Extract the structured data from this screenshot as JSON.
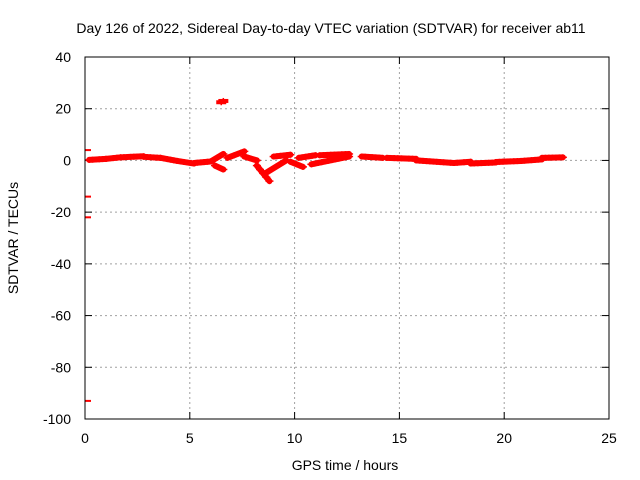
{
  "chart_data": {
    "type": "scatter",
    "title": "Day 126 of 2022, Sidereal Day-to-day VTEC variation (SDTVAR) for receiver ab11",
    "xlabel": "GPS time / hours",
    "ylabel": "SDTVAR / TECUs",
    "xlim": [
      0,
      25
    ],
    "ylim": [
      -100,
      40
    ],
    "x_ticks": [
      0,
      5,
      10,
      15,
      20,
      25
    ],
    "y_ticks": [
      40,
      20,
      0,
      -20,
      -40,
      -60,
      -80,
      -100
    ],
    "grid": true,
    "legend": "none",
    "series_color": "#ff0000",
    "outliers": [
      {
        "x": 0.0,
        "y": 4
      },
      {
        "x": 0.0,
        "y": -14
      },
      {
        "x": 0.0,
        "y": -22
      },
      {
        "x": 0.0,
        "y": -93
      },
      {
        "x": 6.5,
        "y": 22.5
      },
      {
        "x": 6.6,
        "y": 23
      }
    ],
    "segments": [
      {
        "x_start": 0.2,
        "x_end": 1.0,
        "y_start": 0.2,
        "y_end": 0.6
      },
      {
        "x_start": 1.0,
        "x_end": 1.7,
        "y_start": 0.6,
        "y_end": 1.2
      },
      {
        "x_start": 1.7,
        "x_end": 2.8,
        "y_start": 1.2,
        "y_end": 1.6
      },
      {
        "x_start": 2.8,
        "x_end": 3.6,
        "y_start": 1.4,
        "y_end": 1.0
      },
      {
        "x_start": 3.6,
        "x_end": 4.4,
        "y_start": 1.0,
        "y_end": -0.2
      },
      {
        "x_start": 4.4,
        "x_end": 5.2,
        "y_start": -0.2,
        "y_end": -1.2
      },
      {
        "x_start": 5.2,
        "x_end": 6.0,
        "y_start": -1.0,
        "y_end": -0.4
      },
      {
        "x_start": 6.0,
        "x_end": 6.6,
        "y_start": -0.4,
        "y_end": 2.5
      },
      {
        "x_start": 6.2,
        "x_end": 6.6,
        "y_start": -2.0,
        "y_end": -3.5
      },
      {
        "x_start": 6.8,
        "x_end": 7.6,
        "y_start": 1.0,
        "y_end": 3.5
      },
      {
        "x_start": 7.6,
        "x_end": 8.2,
        "y_start": 1.5,
        "y_end": 0.0
      },
      {
        "x_start": 8.2,
        "x_end": 8.8,
        "y_start": -2.0,
        "y_end": -8.0
      },
      {
        "x_start": 8.6,
        "x_end": 9.6,
        "y_start": -5.0,
        "y_end": 0.0
      },
      {
        "x_start": 9.0,
        "x_end": 9.8,
        "y_start": 1.5,
        "y_end": 2.2
      },
      {
        "x_start": 9.8,
        "x_end": 10.4,
        "y_start": -0.5,
        "y_end": -2.5
      },
      {
        "x_start": 10.2,
        "x_end": 11.0,
        "y_start": 1.0,
        "y_end": 2.0
      },
      {
        "x_start": 10.8,
        "x_end": 12.6,
        "y_start": -1.5,
        "y_end": 1.5
      },
      {
        "x_start": 11.2,
        "x_end": 12.6,
        "y_start": 2.0,
        "y_end": 2.5
      },
      {
        "x_start": 13.2,
        "x_end": 14.2,
        "y_start": 1.5,
        "y_end": 1.0
      },
      {
        "x_start": 14.4,
        "x_end": 15.8,
        "y_start": 1.0,
        "y_end": 0.6
      },
      {
        "x_start": 15.8,
        "x_end": 17.6,
        "y_start": 0.0,
        "y_end": -1.0
      },
      {
        "x_start": 17.6,
        "x_end": 18.4,
        "y_start": -1.0,
        "y_end": -0.5
      },
      {
        "x_start": 18.4,
        "x_end": 19.6,
        "y_start": -1.2,
        "y_end": -0.8
      },
      {
        "x_start": 19.6,
        "x_end": 20.8,
        "y_start": -0.6,
        "y_end": -0.2
      },
      {
        "x_start": 20.8,
        "x_end": 21.8,
        "y_start": -0.2,
        "y_end": 0.4
      },
      {
        "x_start": 21.8,
        "x_end": 22.8,
        "y_start": 1.0,
        "y_end": 1.2
      }
    ]
  }
}
